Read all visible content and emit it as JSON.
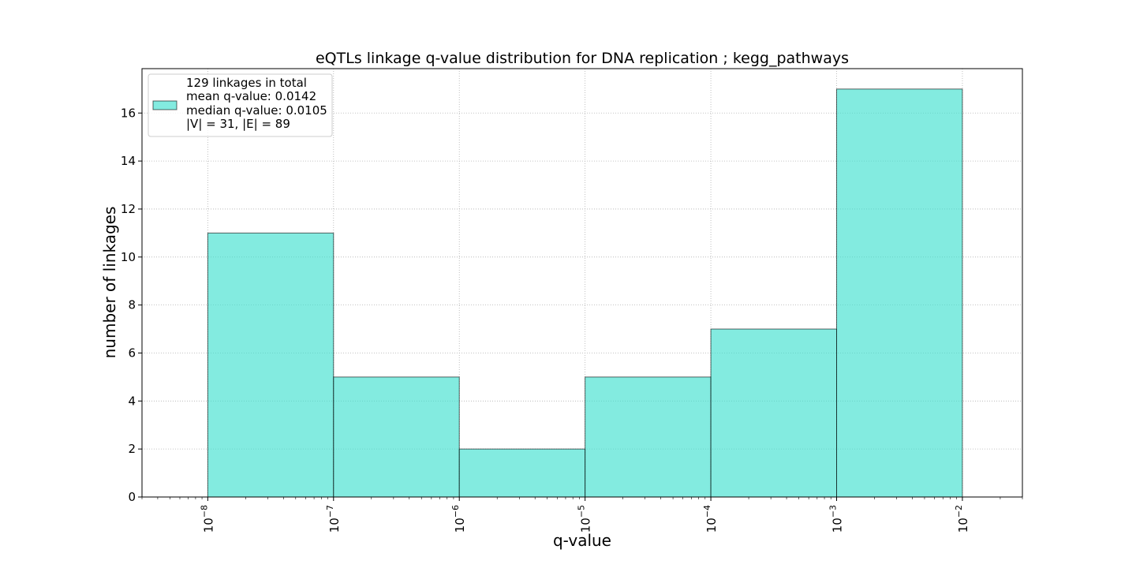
{
  "colors": {
    "bar_fill": "#40e0d0",
    "bar_edge": "#000000",
    "grid": "#b0b0b0",
    "axis": "#000000"
  },
  "chart_data": {
    "type": "bar",
    "title": "eQTLs linkage q-value distribution for DNA replication ; kegg_pathways",
    "xlabel": "q-value",
    "ylabel": "number of linkages",
    "x_scale": "log",
    "xlim": [
      3e-09,
      0.03
    ],
    "ylim": [
      0,
      17.85
    ],
    "grid": true,
    "legend_position": "top-left",
    "bin_edges": [
      1e-08,
      1e-07,
      1e-06,
      1e-05,
      0.0001,
      0.001,
      0.01
    ],
    "values": [
      11,
      5,
      2,
      5,
      7,
      17
    ],
    "y_ticks": [
      "0",
      "2",
      "4",
      "6",
      "8",
      "10",
      "12",
      "14",
      "16"
    ],
    "x_ticks": [
      {
        "base": "10",
        "exp": "−8"
      },
      {
        "base": "10",
        "exp": "−7"
      },
      {
        "base": "10",
        "exp": "−6"
      },
      {
        "base": "10",
        "exp": "−5"
      },
      {
        "base": "10",
        "exp": "−4"
      },
      {
        "base": "10",
        "exp": "−3"
      },
      {
        "base": "10",
        "exp": "−2"
      }
    ],
    "legend_lines": [
      "129 linkages in total",
      "mean q-value: 0.0142",
      "median q-value: 0.0105",
      "|V| = 31, |E| = 89"
    ]
  }
}
